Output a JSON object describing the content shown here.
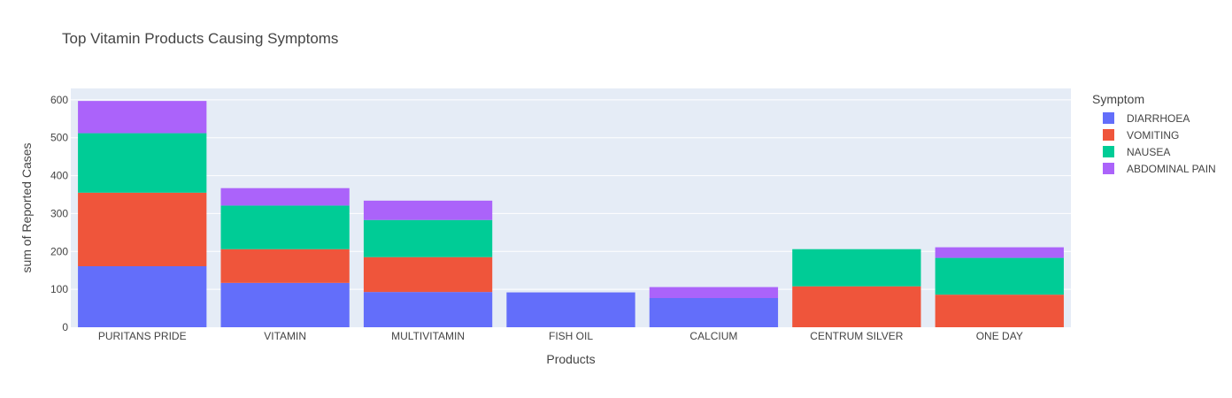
{
  "chart_data": {
    "type": "bar",
    "stacked": true,
    "title": "Top Vitamin Products Causing Symptoms",
    "xlabel": "Products",
    "ylabel": "sum of Reported Cases",
    "ylim": [
      0,
      630
    ],
    "yticks": [
      0,
      100,
      200,
      300,
      400,
      500,
      600
    ],
    "grid": true,
    "legend_title": "Symptom",
    "legend_position": "right",
    "categories": [
      "PURITANS PRIDE",
      "VITAMIN",
      "MULTIVITAMIN",
      "FISH OIL",
      "CALCIUM",
      "CENTRUM SILVER",
      "ONE DAY"
    ],
    "series": [
      {
        "name": "DIARRHOEA",
        "color": "#636efa",
        "values": [
          161,
          117,
          93,
          92,
          77,
          0,
          0
        ]
      },
      {
        "name": "VOMITING",
        "color": "#ef553b",
        "values": [
          194,
          89,
          92,
          0,
          0,
          108,
          86
        ]
      },
      {
        "name": "NAUSEA",
        "color": "#00cc96",
        "values": [
          157,
          115,
          98,
          0,
          0,
          98,
          97
        ]
      },
      {
        "name": "ABDOMINAL PAIN",
        "color": "#ab63fa",
        "values": [
          85,
          46,
          51,
          0,
          29,
          0,
          28
        ]
      }
    ]
  }
}
